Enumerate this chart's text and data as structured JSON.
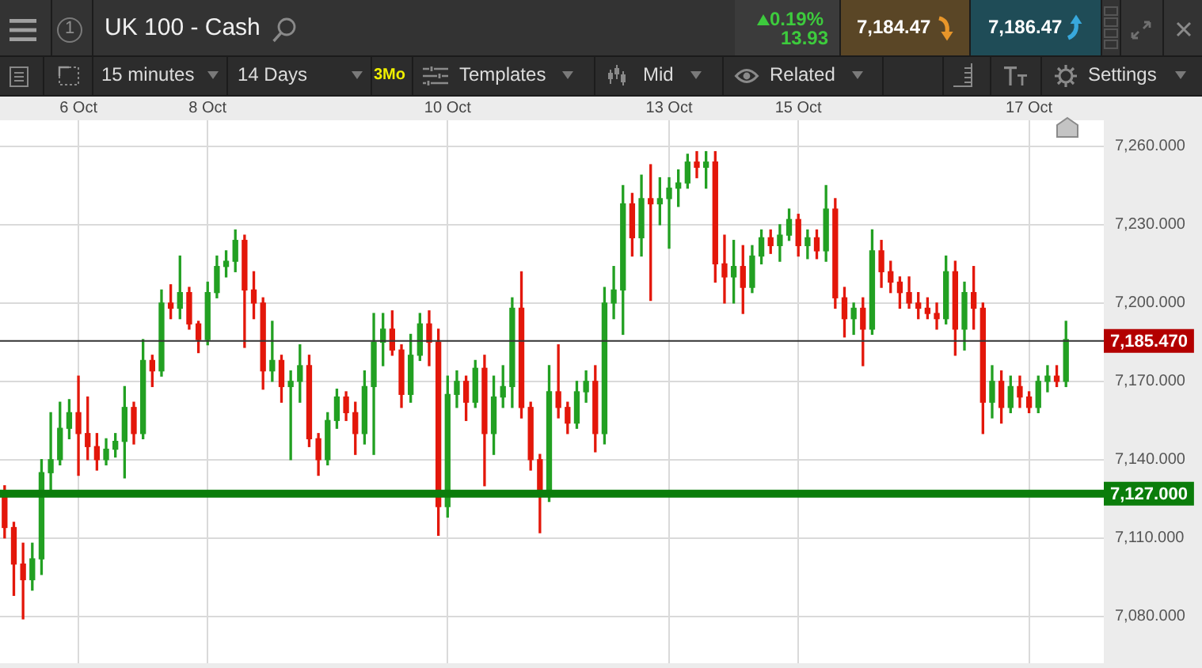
{
  "chart_data": {
    "type": "candlestick",
    "title": "UK 100 - Cash",
    "annotations": [
      "1",
      "0.19%",
      "13.93",
      "7,184.47",
      "7,186.47",
      "15 minutes",
      "14 Days",
      "3Mo",
      "Templates",
      "Mid",
      "Related",
      "Settings"
    ],
    "categories": [
      null,
      null,
      null,
      null,
      null,
      null,
      null,
      null,
      "6 Oct",
      null,
      null,
      null,
      null,
      null,
      null,
      null,
      null,
      null,
      null,
      null,
      null,
      null,
      "8 Oct",
      null,
      null,
      null,
      null,
      null,
      null,
      null,
      null,
      null,
      null,
      null,
      null,
      null,
      null,
      null,
      null,
      null,
      null,
      null,
      null,
      null,
      null,
      null,
      null,
      null,
      "10 Oct",
      null,
      null,
      null,
      null,
      null,
      null,
      null,
      null,
      null,
      null,
      null,
      null,
      null,
      null,
      null,
      null,
      null,
      null,
      null,
      null,
      null,
      null,
      null,
      "13 Oct",
      null,
      null,
      null,
      null,
      null,
      null,
      null,
      null,
      null,
      null,
      null,
      null,
      null,
      "15 Oct",
      null,
      null,
      null,
      null,
      null,
      null,
      null,
      null,
      null,
      null,
      null,
      null,
      null,
      null,
      null,
      null,
      null,
      null,
      null,
      null,
      null,
      null,
      null,
      null,
      "17 Oct",
      null,
      null,
      null,
      null
    ],
    "ohlc": [
      [
        7128,
        7130,
        7110,
        7114
      ],
      [
        7114,
        7116,
        7088,
        7100
      ],
      [
        7100,
        7108,
        7079,
        7094
      ],
      [
        7094,
        7108,
        7090,
        7102
      ],
      [
        7102,
        7140,
        7096,
        7135
      ],
      [
        7135,
        7158,
        7127,
        7140
      ],
      [
        7140,
        7162,
        7138,
        7152
      ],
      [
        7152,
        7163,
        7148,
        7158
      ],
      [
        7158,
        7172,
        7134,
        7150
      ],
      [
        7150,
        7164,
        7140,
        7145
      ],
      [
        7145,
        7150,
        7136,
        7140
      ],
      [
        7140,
        7148,
        7138,
        7144
      ],
      [
        7144,
        7150,
        7141,
        7147
      ],
      [
        7147,
        7168,
        7133,
        7160
      ],
      [
        7160,
        7162,
        7146,
        7150
      ],
      [
        7150,
        7186,
        7148,
        7178
      ],
      [
        7178,
        7180,
        7168,
        7174
      ],
      [
        7174,
        7205,
        7172,
        7200
      ],
      [
        7200,
        7207,
        7194,
        7198
      ],
      [
        7198,
        7218,
        7194,
        7204
      ],
      [
        7204,
        7206,
        7190,
        7192
      ],
      [
        7192,
        7193,
        7181,
        7186
      ],
      [
        7186,
        7208,
        7184,
        7204
      ],
      [
        7204,
        7218,
        7202,
        7214
      ],
      [
        7214,
        7220,
        7210,
        7216
      ],
      [
        7216,
        7228,
        7212,
        7224
      ],
      [
        7224,
        7226,
        7183,
        7205
      ],
      [
        7205,
        7212,
        7194,
        7200
      ],
      [
        7200,
        7202,
        7167,
        7174
      ],
      [
        7174,
        7193,
        7170,
        7178
      ],
      [
        7178,
        7180,
        7162,
        7168
      ],
      [
        7168,
        7174,
        7140,
        7170
      ],
      [
        7170,
        7184,
        7162,
        7176
      ],
      [
        7176,
        7180,
        7145,
        7148
      ],
      [
        7148,
        7150,
        7134,
        7140
      ],
      [
        7140,
        7158,
        7138,
        7155
      ],
      [
        7155,
        7167,
        7152,
        7164
      ],
      [
        7164,
        7166,
        7155,
        7158
      ],
      [
        7158,
        7162,
        7142,
        7150
      ],
      [
        7150,
        7174,
        7146,
        7168
      ],
      [
        7168,
        7196,
        7142,
        7185
      ],
      [
        7185,
        7196,
        7176,
        7190
      ],
      [
        7190,
        7197,
        7180,
        7182
      ],
      [
        7182,
        7184,
        7160,
        7165
      ],
      [
        7165,
        7188,
        7162,
        7180
      ],
      [
        7180,
        7196,
        7178,
        7192
      ],
      [
        7192,
        7197,
        7176,
        7185
      ],
      [
        7185,
        7190,
        7111,
        7122
      ],
      [
        7122,
        7172,
        7118,
        7165
      ],
      [
        7165,
        7174,
        7160,
        7170
      ],
      [
        7170,
        7172,
        7155,
        7162
      ],
      [
        7162,
        7178,
        7160,
        7175
      ],
      [
        7175,
        7180,
        7130,
        7150
      ],
      [
        7150,
        7172,
        7142,
        7164
      ],
      [
        7164,
        7176,
        7160,
        7168
      ],
      [
        7168,
        7202,
        7160,
        7198
      ],
      [
        7198,
        7212,
        7156,
        7160
      ],
      [
        7160,
        7162,
        7136,
        7140
      ],
      [
        7140,
        7142,
        7112,
        7128
      ],
      [
        7128,
        7176,
        7124,
        7166
      ],
      [
        7166,
        7184,
        7156,
        7160
      ],
      [
        7160,
        7162,
        7150,
        7154
      ],
      [
        7154,
        7170,
        7152,
        7166
      ],
      [
        7166,
        7174,
        7162,
        7170
      ],
      [
        7170,
        7176,
        7143,
        7150
      ],
      [
        7150,
        7206,
        7146,
        7200
      ],
      [
        7200,
        7214,
        7194,
        7205
      ],
      [
        7205,
        7245,
        7188,
        7238
      ],
      [
        7238,
        7242,
        7218,
        7225
      ],
      [
        7225,
        7249,
        7218,
        7240
      ],
      [
        7240,
        7253,
        7201,
        7238
      ],
      [
        7238,
        7248,
        7230,
        7240
      ],
      [
        7240,
        7248,
        7221,
        7244
      ],
      [
        7244,
        7251,
        7237,
        7246
      ],
      [
        7246,
        7257,
        7244,
        7254
      ],
      [
        7254,
        7258,
        7248,
        7252
      ],
      [
        7252,
        7258,
        7244,
        7254
      ],
      [
        7254,
        7258,
        7208,
        7215
      ],
      [
        7215,
        7226,
        7200,
        7210
      ],
      [
        7210,
        7224,
        7200,
        7214
      ],
      [
        7214,
        7222,
        7196,
        7206
      ],
      [
        7206,
        7222,
        7204,
        7218
      ],
      [
        7218,
        7228,
        7215,
        7225
      ],
      [
        7225,
        7228,
        7219,
        7222
      ],
      [
        7222,
        7230,
        7216,
        7226
      ],
      [
        7226,
        7236,
        7224,
        7232
      ],
      [
        7232,
        7234,
        7218,
        7222
      ],
      [
        7222,
        7228,
        7217,
        7225
      ],
      [
        7225,
        7228,
        7217,
        7220
      ],
      [
        7220,
        7245,
        7216,
        7236
      ],
      [
        7236,
        7240,
        7198,
        7202
      ],
      [
        7202,
        7206,
        7187,
        7194
      ],
      [
        7194,
        7200,
        7188,
        7198
      ],
      [
        7198,
        7202,
        7176,
        7190
      ],
      [
        7190,
        7228,
        7188,
        7220
      ],
      [
        7220,
        7224,
        7206,
        7212
      ],
      [
        7212,
        7216,
        7204,
        7208
      ],
      [
        7208,
        7210,
        7198,
        7204
      ],
      [
        7204,
        7210,
        7198,
        7200
      ],
      [
        7200,
        7204,
        7194,
        7198
      ],
      [
        7198,
        7202,
        7194,
        7196
      ],
      [
        7196,
        7200,
        7190,
        7194
      ],
      [
        7194,
        7218,
        7192,
        7212
      ],
      [
        7212,
        7216,
        7180,
        7190
      ],
      [
        7190,
        7208,
        7182,
        7204
      ],
      [
        7204,
        7214,
        7190,
        7198
      ],
      [
        7198,
        7200,
        7150,
        7162
      ],
      [
        7162,
        7176,
        7156,
        7170
      ],
      [
        7170,
        7174,
        7154,
        7160
      ],
      [
        7160,
        7172,
        7158,
        7168
      ],
      [
        7168,
        7172,
        7160,
        7164
      ],
      [
        7164,
        7166,
        7158,
        7160
      ],
      [
        7160,
        7172,
        7158,
        7170
      ],
      [
        7170,
        7176,
        7166,
        7172
      ],
      [
        7172,
        7176,
        7168,
        7170
      ],
      [
        7170,
        7193,
        7168,
        7186
      ]
    ],
    "colors": [
      "#e3170a",
      "#e3170a",
      "#e3170a",
      "#22a022",
      "#22a022",
      "#22a022",
      "#22a022",
      "#22a022",
      "#e3170a",
      "#e3170a",
      "#e3170a",
      "#22a022",
      "#22a022",
      "#22a022",
      "#e3170a",
      "#22a022",
      "#e3170a",
      "#22a022",
      "#e3170a",
      "#22a022",
      "#e3170a",
      "#e3170a",
      "#22a022",
      "#22a022",
      "#22a022",
      "#22a022",
      "#e3170a",
      "#e3170a",
      "#e3170a",
      "#22a022",
      "#e3170a",
      "#22a022",
      "#22a022",
      "#e3170a",
      "#e3170a",
      "#22a022",
      "#22a022",
      "#e3170a",
      "#e3170a",
      "#22a022",
      "#22a022",
      "#22a022",
      "#e3170a",
      "#e3170a",
      "#22a022",
      "#22a022",
      "#e3170a",
      "#e3170a",
      "#22a022",
      "#22a022",
      "#e3170a",
      "#22a022",
      "#e3170a",
      "#22a022",
      "#22a022",
      "#22a022",
      "#e3170a",
      "#e3170a",
      "#e3170a",
      "#22a022",
      "#e3170a",
      "#e3170a",
      "#22a022",
      "#22a022",
      "#e3170a",
      "#22a022",
      "#22a022",
      "#22a022",
      "#e3170a",
      "#22a022",
      "#e3170a",
      "#22a022",
      "#22a022",
      "#22a022",
      "#22a022",
      "#e3170a",
      "#22a022",
      "#e3170a",
      "#e3170a",
      "#22a022",
      "#e3170a",
      "#22a022",
      "#22a022",
      "#e3170a",
      "#22a022",
      "#22a022",
      "#e3170a",
      "#22a022",
      "#e3170a",
      "#22a022",
      "#e3170a",
      "#e3170a",
      "#22a022",
      "#e3170a",
      "#22a022",
      "#e3170a",
      "#e3170a",
      "#e3170a",
      "#e3170a",
      "#e3170a",
      "#e3170a",
      "#e3170a",
      "#22a022",
      "#e3170a",
      "#22a022",
      "#e3170a",
      "#e3170a",
      "#22a022",
      "#e3170a",
      "#22a022",
      "#e3170a",
      "#e3170a",
      "#22a022",
      "#22a022",
      "#e3170a",
      "#22a022"
    ],
    "ylim": [
      7062,
      7270
    ],
    "yticks": [
      {
        "value": 7080,
        "label": "7,080.000"
      },
      {
        "value": 7110,
        "label": "7,110.000"
      },
      {
        "value": 7140,
        "label": "7,140.000"
      },
      {
        "value": 7170,
        "label": "7,170.000"
      },
      {
        "value": 7200,
        "label": "7,200.000"
      },
      {
        "value": 7230,
        "label": "7,230.000"
      },
      {
        "value": 7260,
        "label": "7,260.000"
      }
    ],
    "grid": true,
    "ref_lines": [
      {
        "axis": "y",
        "value": 7185.47,
        "label": "7,185.470",
        "color": "#333333"
      },
      {
        "axis": "y",
        "value": 7127,
        "label": "7,127.000",
        "color": "#0b7d0b"
      }
    ]
  }
}
